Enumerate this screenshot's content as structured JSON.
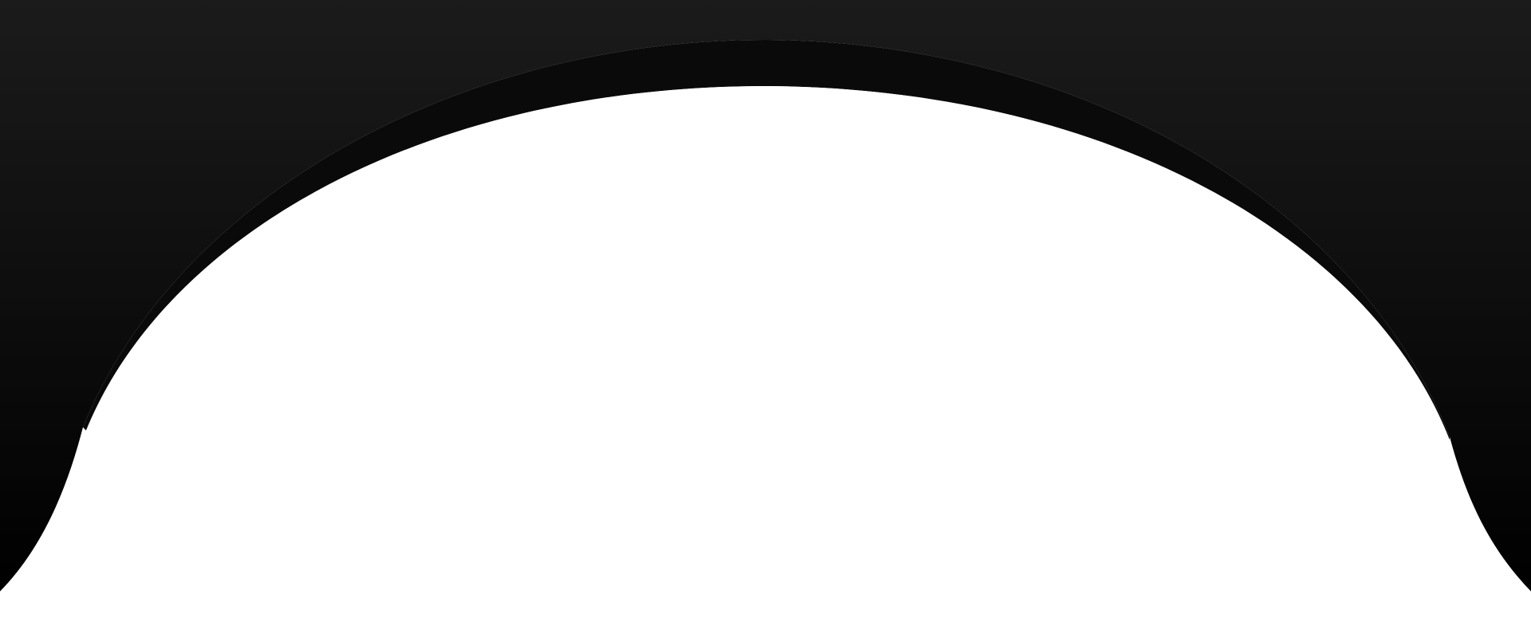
{
  "colors": {
    "background": "#ffffff",
    "frame_top": "#1b1b1b",
    "frame_bottom": "#000000",
    "inner_rim": "#0a0a0a"
  },
  "shapes": {
    "frame": "dark-arched-frame",
    "rim": "inner-arch-rim",
    "opening": "white-arched-opening"
  }
}
